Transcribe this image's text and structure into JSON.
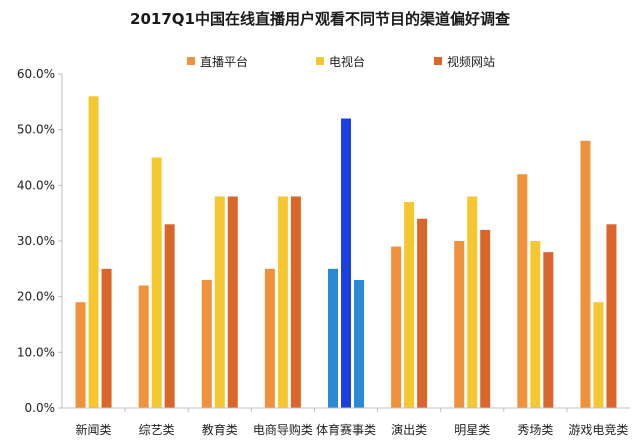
{
  "chart_data": {
    "type": "bar",
    "title": "2017Q1中国在线直播用户观看不同节目的渠道偏好调查",
    "xlabel": "",
    "ylabel": "",
    "ylim": [
      0,
      60
    ],
    "yticks": [
      0,
      10,
      20,
      30,
      40,
      50,
      60
    ],
    "ytick_labels": [
      "0.0%",
      "10.0%",
      "20.0%",
      "30.0%",
      "40.0%",
      "50.0%",
      "60.0%"
    ],
    "grid": false,
    "legend_position": "top",
    "categories": [
      "新闻类",
      "综艺类",
      "教育类",
      "电商导购类",
      "体育赛事类",
      "演出类",
      "明星类",
      "秀场类",
      "游戏电竞类"
    ],
    "series": [
      {
        "name": "直播平台",
        "color": "#F0923C",
        "values": [
          19,
          22,
          23,
          25,
          25,
          29,
          30,
          42,
          48
        ]
      },
      {
        "name": "电视台",
        "color": "#F5C730",
        "values": [
          56,
          45,
          38,
          38,
          52,
          37,
          38,
          30,
          19
        ]
      },
      {
        "name": "视频网站",
        "color": "#D9662A",
        "values": [
          25,
          33,
          38,
          38,
          23,
          34,
          32,
          28,
          33
        ]
      }
    ],
    "highlight": {
      "category": "体育赛事类",
      "colors": [
        "#2A8AD6",
        "#1A40E0",
        "#2A8AD6"
      ]
    }
  }
}
